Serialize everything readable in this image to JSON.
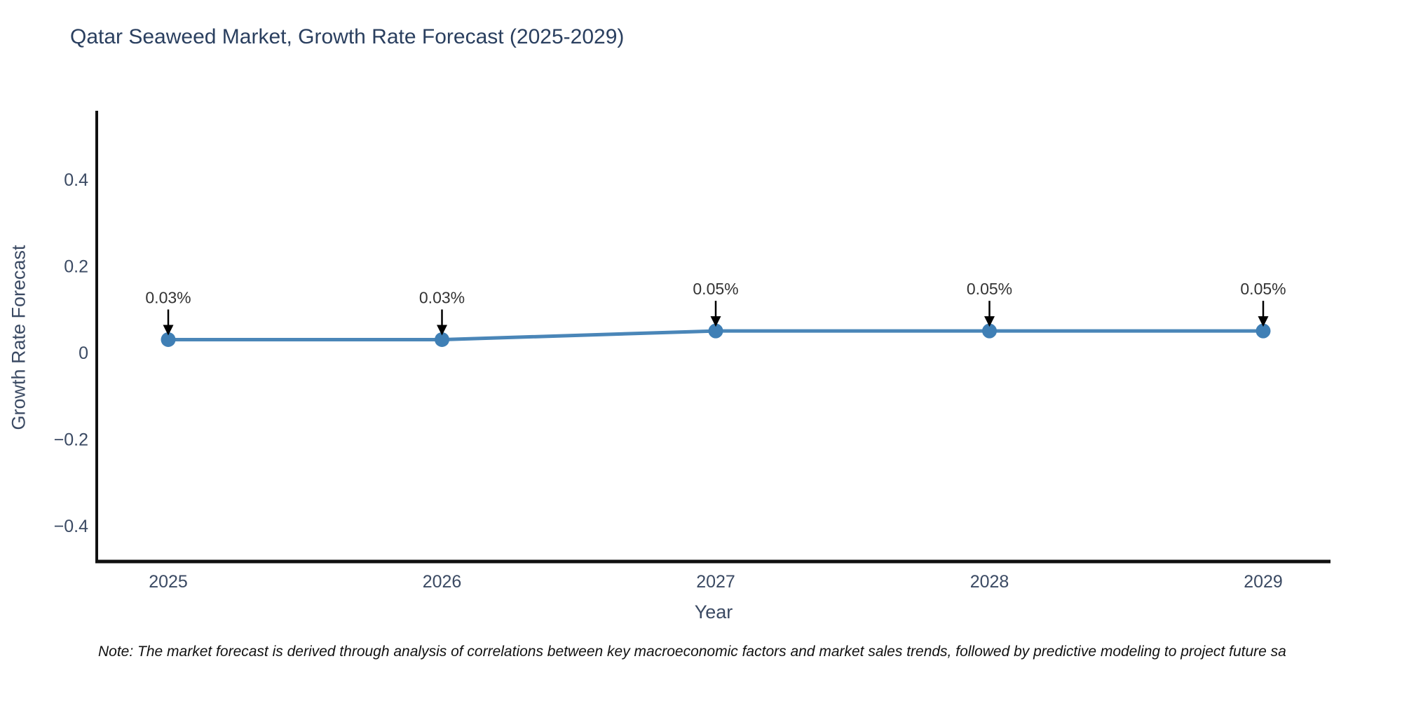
{
  "figure": {
    "title": "Qatar Seaweed Market, Growth Rate Forecast (2025-2029)",
    "note": "Note: The market forecast is derived through analysis of correlations between key macroeconomic factors and market sales trends, followed by predictive modeling to project future sa"
  },
  "chart_data": {
    "type": "line",
    "title": "Qatar Seaweed Market, Growth Rate Forecast (2025-2029)",
    "xlabel": "Year",
    "ylabel": "Growth Rate Forecast",
    "x": [
      2025,
      2026,
      2027,
      2028,
      2029
    ],
    "categories": [
      "2025",
      "2026",
      "2027",
      "2028",
      "2029"
    ],
    "values": [
      0.03,
      0.03,
      0.05,
      0.05,
      0.05
    ],
    "point_labels": [
      "0.03%",
      "0.03%",
      "0.05%",
      "0.05%",
      "0.05%"
    ],
    "annotation_style": "value label with downward arrow above each marker",
    "ylim": [
      -0.48,
      0.55
    ],
    "yticks": [
      0.4,
      0.2,
      0,
      -0.2,
      -0.4
    ],
    "ytick_labels": [
      "0.4",
      "0.2",
      "0",
      "−0.2",
      "−0.4"
    ],
    "grid": false,
    "legend": "none",
    "colors": {
      "line": "#4a86b8",
      "marker": "#3f7fb5",
      "annotation_text": "#333333",
      "arrow": "#000000",
      "axis": "#111111",
      "tick_label": "#3b4a63",
      "title": "#2a3f5f",
      "background": "#ffffff"
    }
  }
}
